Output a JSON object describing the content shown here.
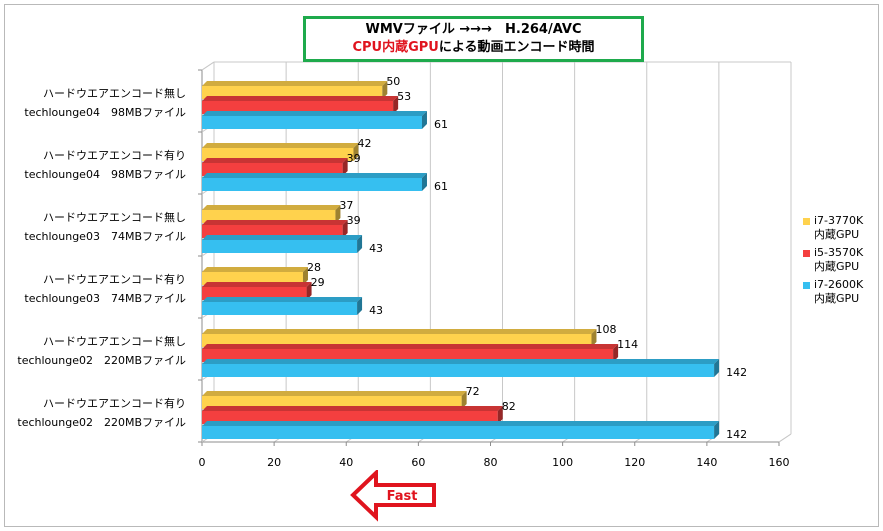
{
  "title": {
    "line1": "WMVファイル →→→　H.264/AVC",
    "line2_red": "CPU内蔵GPU",
    "line2_rest": "による動画エンコード時間"
  },
  "fast_label": "Fast",
  "colors": {
    "i7_3770k": "#ffd24d",
    "i5_3570k": "#f43f3f",
    "i7_2600k": "#36bff0",
    "title_border": "#1eaa4c",
    "fast_arrow": "#e0141e"
  },
  "chart_data": {
    "type": "bar",
    "orientation": "horizontal",
    "categories": [
      [
        "ハードウエアエンコード無し",
        "techlounge04　98MBファイル"
      ],
      [
        "ハードウエアエンコード有り",
        "techlounge04　98MBファイル"
      ],
      [
        "ハードウエアエンコード無し",
        "techlounge03　74MBファイル"
      ],
      [
        "ハードウエアエンコード有り",
        "techlounge03　74MBファイル"
      ],
      [
        "ハードウエアエンコード無し",
        "techlounge02　220MBファイル"
      ],
      [
        "ハードウエアエンコード有り",
        "techlounge02　220MBファイル"
      ]
    ],
    "series": [
      {
        "name": "i7-3770K 内蔵GPU",
        "legend_lines": [
          "i7-3770K",
          "内蔵GPU"
        ],
        "color": "#ffd24d",
        "values": [
          50,
          42,
          37,
          28,
          108,
          72
        ]
      },
      {
        "name": "i5-3570K 内蔵GPU",
        "legend_lines": [
          "i5-3570K",
          "内蔵GPU"
        ],
        "color": "#f43f3f",
        "values": [
          53,
          39,
          39,
          29,
          114,
          82
        ]
      },
      {
        "name": "i7-2600K 内蔵GPU",
        "legend_lines": [
          "i7-2600K",
          "内蔵GPU"
        ],
        "color": "#36bff0",
        "values": [
          61,
          61,
          43,
          43,
          142,
          142
        ]
      }
    ],
    "xlim": [
      0,
      160
    ],
    "xticks": [
      0,
      20,
      40,
      60,
      80,
      100,
      120,
      140,
      160
    ],
    "grid": true,
    "legend_position": "right"
  }
}
